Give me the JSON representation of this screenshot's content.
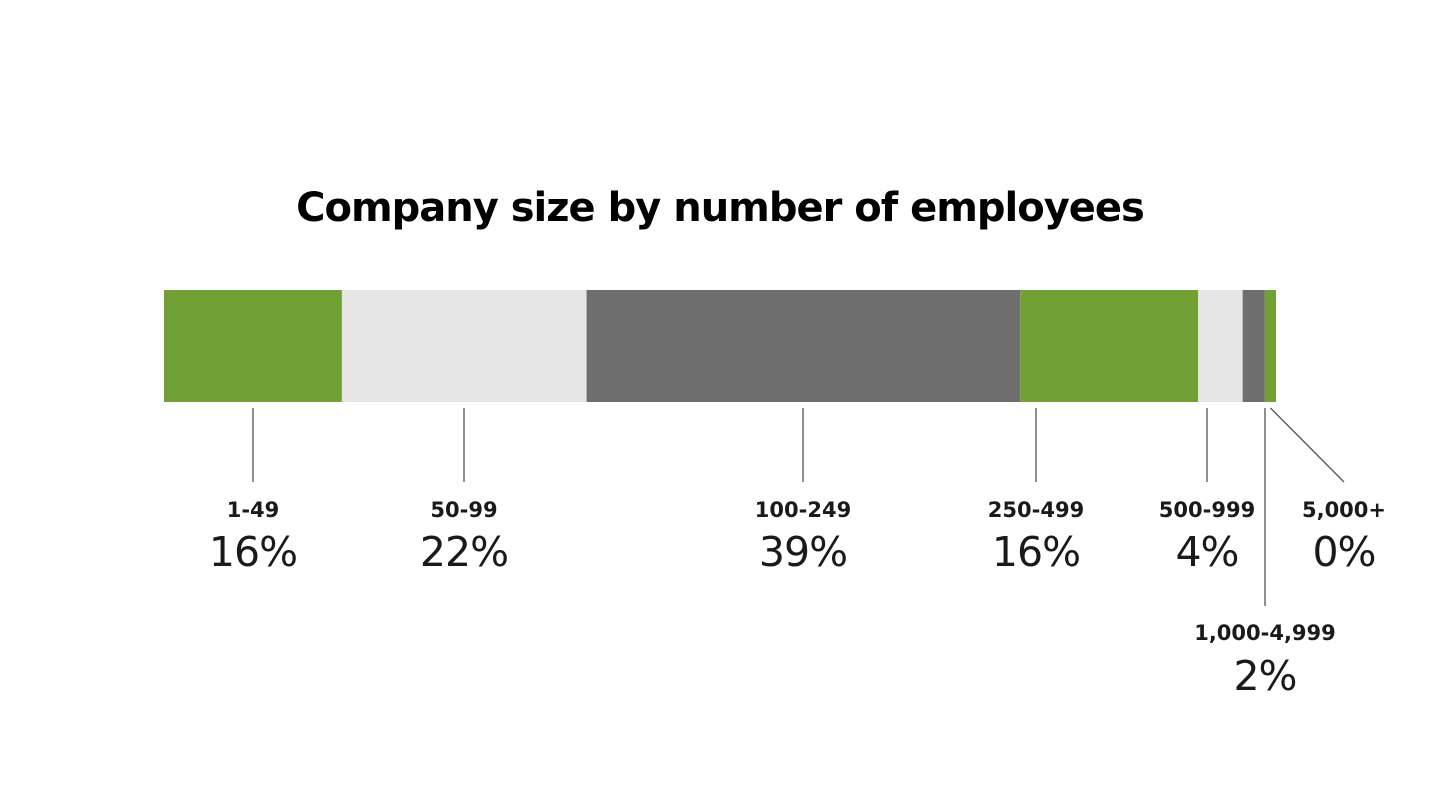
{
  "chart_data": {
    "type": "bar",
    "orientation": "horizontal-stacked",
    "title": "Company size by number of employees",
    "categories": [
      "1-49",
      "50-99",
      "100-249",
      "250-499",
      "500-999",
      "1,000-4,999",
      "5,000+"
    ],
    "values": [
      16,
      22,
      39,
      16,
      4,
      2,
      0
    ],
    "display_values": [
      "16%",
      "22%",
      "39%",
      "16%",
      "4%",
      "2%",
      "0%"
    ],
    "segment_share": [
      16,
      22,
      39,
      16,
      4,
      2,
      1
    ],
    "colors": [
      "#71a135",
      "#e6e6e6",
      "#6d6e6d",
      "#71a135",
      "#e6e6e6",
      "#6d6e6d",
      "#71a135"
    ],
    "unit": "%",
    "legend": "none",
    "grid": false
  },
  "colors": {
    "leader_line": "#555555",
    "text": "#1a1a1a"
  }
}
